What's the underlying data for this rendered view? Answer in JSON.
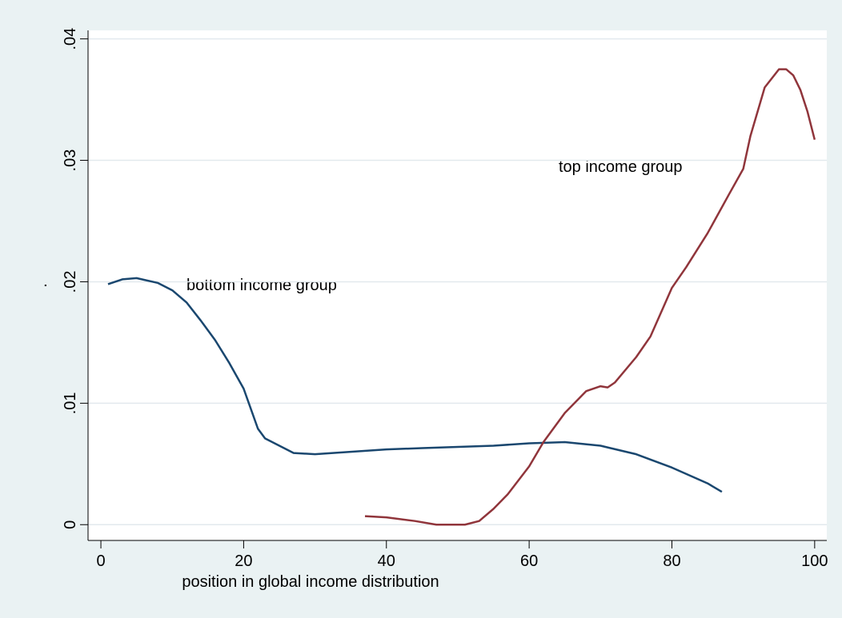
{
  "chart_data": {
    "type": "line",
    "x_label": "position in global income distribution",
    "y_label": ".",
    "annotations": [
      "bottom income group",
      "top income group"
    ],
    "xlim": [
      -1.8,
      101.7
    ],
    "ylim": [
      -0.0013,
      0.0407
    ],
    "xticks": [
      0,
      20,
      40,
      60,
      80,
      100
    ],
    "yticks": [
      0,
      {
        "value": 0.01,
        "label": ".01"
      },
      {
        "value": 0.02,
        "label": ".02"
      },
      {
        "value": 0.03,
        "label": ".03"
      },
      {
        "value": 0.04,
        "label": ".04"
      }
    ],
    "grid": true,
    "series": [
      {
        "color": "#1a476f",
        "x": [
          1,
          3,
          5,
          8,
          10,
          12,
          14,
          16,
          18,
          20,
          22,
          23,
          25,
          27,
          30,
          35,
          40,
          45,
          50,
          55,
          60,
          65,
          70,
          75,
          80,
          85,
          87
        ],
        "values": [
          0.0198,
          0.0202,
          0.0203,
          0.0199,
          0.0193,
          0.0183,
          0.0168,
          0.0152,
          0.0133,
          0.0112,
          0.0079,
          0.0071,
          0.0065,
          0.0059,
          0.0058,
          0.006,
          0.0062,
          0.0063,
          0.0064,
          0.0065,
          0.0067,
          0.0068,
          0.0065,
          0.0058,
          0.0047,
          0.0034,
          0.0027
        ]
      },
      {
        "color": "#90353b",
        "x": [
          37,
          40,
          44,
          47,
          51,
          53,
          55,
          57,
          60,
          62,
          65,
          68,
          70,
          71,
          72,
          75,
          77,
          80,
          82,
          85,
          88,
          90,
          91,
          93,
          95,
          96,
          97,
          98,
          99,
          100
        ],
        "values": [
          0.0007,
          0.0006,
          0.0003,
          0.0,
          0.0,
          0.0003,
          0.0013,
          0.0025,
          0.0048,
          0.0068,
          0.0092,
          0.011,
          0.0114,
          0.0113,
          0.0117,
          0.0138,
          0.0155,
          0.0195,
          0.0212,
          0.024,
          0.0272,
          0.0293,
          0.032,
          0.036,
          0.0375,
          0.0375,
          0.037,
          0.0358,
          0.034,
          0.0317
        ]
      }
    ]
  }
}
